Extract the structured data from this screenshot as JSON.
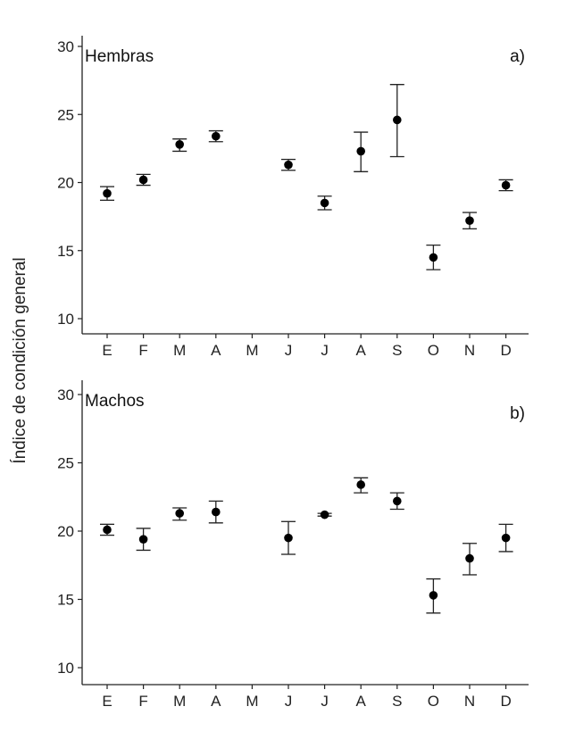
{
  "y_axis_label": "Índice de condición general",
  "chart_data": [
    {
      "type": "scatter",
      "panel_label": "a)",
      "title": "Hembras",
      "xlabel": "",
      "ylabel": "Índice de condición general",
      "categories": [
        "E",
        "F",
        "M",
        "A",
        "M",
        "J",
        "J",
        "A",
        "S",
        "O",
        "N",
        "D"
      ],
      "ylim": [
        9,
        31
      ],
      "yticks": [
        10,
        15,
        20,
        25,
        30
      ],
      "series": [
        {
          "name": "Hembras",
          "values": [
            19.2,
            20.2,
            22.8,
            23.4,
            null,
            21.3,
            18.5,
            22.3,
            24.6,
            14.5,
            17.2,
            19.8
          ],
          "err_low": [
            18.7,
            19.8,
            22.3,
            23.0,
            null,
            20.9,
            18.0,
            20.8,
            21.9,
            13.6,
            16.6,
            19.4
          ],
          "err_high": [
            19.7,
            20.6,
            23.2,
            23.8,
            null,
            21.7,
            19.0,
            23.7,
            27.2,
            15.4,
            17.8,
            20.2
          ]
        }
      ],
      "grid": false
    },
    {
      "type": "scatter",
      "panel_label": "b)",
      "title": "Machos",
      "xlabel": "",
      "ylabel": "Índice de condición general",
      "categories": [
        "E",
        "F",
        "M",
        "A",
        "M",
        "J",
        "J",
        "A",
        "S",
        "O",
        "N",
        "D"
      ],
      "ylim": [
        9,
        31
      ],
      "yticks": [
        10,
        15,
        20,
        25,
        30
      ],
      "series": [
        {
          "name": "Machos",
          "values": [
            20.1,
            19.4,
            21.3,
            21.4,
            null,
            19.5,
            21.2,
            23.4,
            22.2,
            15.3,
            18.0,
            19.5
          ],
          "err_low": [
            19.7,
            18.6,
            20.8,
            20.6,
            null,
            18.3,
            21.1,
            22.8,
            21.6,
            14.0,
            16.8,
            18.5
          ],
          "err_high": [
            20.5,
            20.2,
            21.7,
            22.2,
            null,
            20.7,
            21.3,
            23.9,
            22.8,
            16.5,
            19.1,
            20.5
          ]
        }
      ],
      "grid": false
    }
  ]
}
